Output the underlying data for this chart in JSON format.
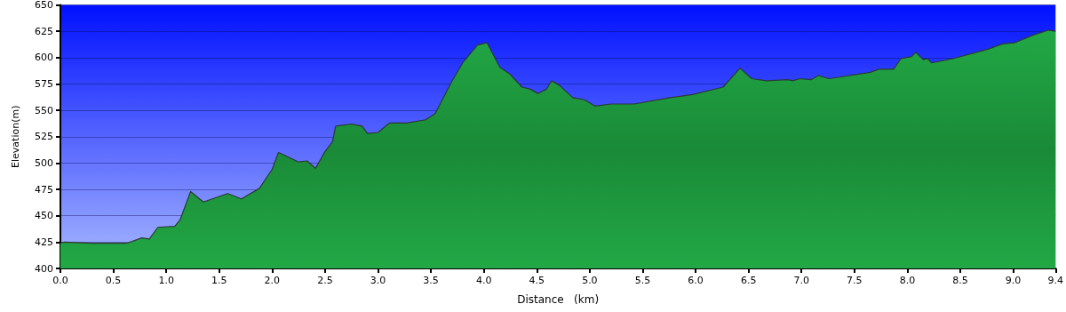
{
  "chart_data": {
    "type": "area",
    "xlabel": "Distance   (km)",
    "ylabel": "Elevation(m)",
    "x": [
      0,
      0.04,
      0.3,
      0.63,
      0.77,
      0.84,
      0.92,
      1.08,
      1.13,
      1.23,
      1.35,
      1.58,
      1.71,
      1.88,
      2.0,
      2.06,
      2.25,
      2.33,
      2.41,
      2.5,
      2.57,
      2.6,
      2.75,
      2.85,
      2.9,
      3.0,
      3.11,
      3.27,
      3.45,
      3.54,
      3.69,
      3.8,
      3.94,
      4.03,
      4.15,
      4.25,
      4.36,
      4.44,
      4.51,
      4.59,
      4.64,
      4.71,
      4.84,
      4.95,
      5.05,
      5.2,
      5.42,
      5.76,
      5.97,
      6.26,
      6.42,
      6.53,
      6.67,
      6.87,
      6.92,
      6.98,
      7.09,
      7.16,
      7.26,
      7.65,
      7.73,
      7.87,
      7.94,
      8.04,
      8.08,
      8.15,
      8.19,
      8.23,
      8.43,
      8.76,
      8.9,
      9.01,
      9.18,
      9.33,
      9.4
    ],
    "series": [
      {
        "color": "#22a845",
        "values": [
          424,
          425,
          424,
          424,
          429,
          428,
          439,
          440,
          446,
          473,
          463,
          471,
          466,
          476,
          494,
          510,
          501,
          502,
          495,
          511,
          520,
          535,
          537,
          535,
          528,
          529,
          538,
          538,
          541,
          547,
          576,
          595,
          612,
          614,
          591,
          584,
          572,
          570,
          566,
          570,
          578,
          574,
          562,
          560,
          554,
          556,
          556,
          562,
          565,
          572,
          590,
          580,
          578,
          579,
          578,
          580,
          579,
          583,
          580,
          586,
          589,
          589,
          599,
          601,
          605,
          598,
          599,
          595,
          599,
          608,
          613,
          614,
          621,
          626,
          625
        ]
      }
    ],
    "xlim": [
      0,
      9.4
    ],
    "xticks": [
      {
        "value": 0,
        "label": "0.0"
      },
      0.5,
      {
        "value": 1,
        "label": "1.0"
      },
      1.5,
      {
        "value": 2,
        "label": "2.0"
      },
      2.5,
      {
        "value": 3,
        "label": "3.0"
      },
      3.5,
      {
        "value": 4,
        "label": "4.0"
      },
      4.5,
      {
        "value": 5,
        "label": "5.0"
      },
      5.5,
      {
        "value": 6,
        "label": "6.0"
      },
      6.5,
      {
        "value": 7,
        "label": "7.0"
      },
      7.5,
      {
        "value": 8,
        "label": "8.0"
      },
      8.5,
      {
        "value": 9,
        "label": "9.0"
      },
      9.4
    ],
    "ylim": [
      400,
      650
    ],
    "yticks": [
      400,
      425,
      450,
      475,
      500,
      525,
      550,
      575,
      600,
      625,
      650
    ],
    "grid": "y",
    "marker": "none",
    "line_style": "solid"
  }
}
